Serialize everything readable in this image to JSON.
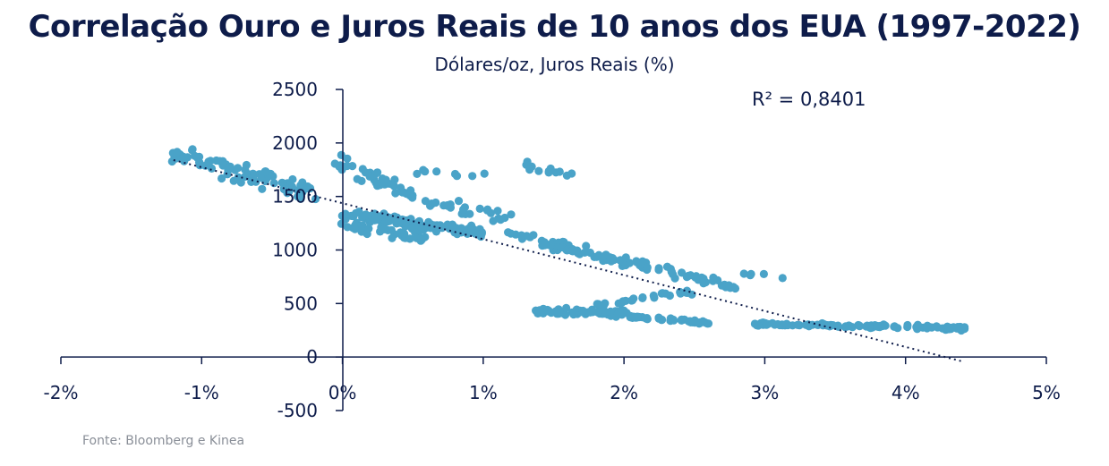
{
  "chart_data": {
    "type": "scatter",
    "title": "Correlação Ouro e Juros Reais de 10 anos dos EUA (1997-2022)",
    "subtitle": "Dólares/oz, Juros Reais (%)",
    "source": "Fonte: Bloomberg e Kinea",
    "annotation": "R² = 0,8401",
    "xlim": [
      -0.02,
      0.05
    ],
    "ylim": [
      -500,
      2500
    ],
    "x_ticks": [
      "-2%",
      "-1%",
      "0%",
      "1%",
      "2%",
      "3%",
      "4%",
      "5%"
    ],
    "y_ticks": [
      "2500",
      "2000",
      "1500",
      "1000",
      "500",
      "0",
      "-500"
    ],
    "x_tick_values": [
      -0.02,
      -0.01,
      0,
      0.01,
      0.02,
      0.03,
      0.04,
      0.05
    ],
    "y_tick_values": [
      2500,
      2000,
      1500,
      1000,
      500,
      0,
      -500
    ],
    "point_color": "#4aa3c8",
    "trendline": {
      "color": "#0e1c4a",
      "style": "dotted",
      "x": [
        -0.012,
        0.044
      ],
      "y": [
        1840,
        -40
      ]
    },
    "clusters": [
      {
        "x_from": -0.012,
        "x_to": -0.002,
        "y_from": 1900,
        "y_to": 1520,
        "n": 90,
        "spread": 110
      },
      {
        "x_from": -0.0002,
        "x_to": 0.006,
        "y_from": 1820,
        "y_to": 1450,
        "n": 40,
        "spread": 90
      },
      {
        "x_from": 0.006,
        "x_to": 0.012,
        "y_from": 1450,
        "y_to": 1300,
        "n": 25,
        "spread": 80
      },
      {
        "x_from": 0.0,
        "x_to": 0.01,
        "y_from": 1350,
        "y_to": 1150,
        "n": 120,
        "spread": 70
      },
      {
        "x_from": 0.0,
        "x_to": 0.006,
        "y_from": 1250,
        "y_to": 1100,
        "n": 35,
        "spread": 60
      },
      {
        "x_from": 0.012,
        "x_to": 0.02,
        "y_from": 1150,
        "y_to": 880,
        "n": 60,
        "spread": 70
      },
      {
        "x_from": 0.02,
        "x_to": 0.028,
        "y_from": 900,
        "y_to": 650,
        "n": 45,
        "spread": 60
      },
      {
        "x_from": 0.028,
        "x_to": 0.031,
        "y_from": 800,
        "y_to": 720,
        "n": 5,
        "spread": 40
      },
      {
        "x_from": 0.014,
        "x_to": 0.02,
        "y_from": 430,
        "y_to": 410,
        "n": 80,
        "spread": 40
      },
      {
        "x_from": 0.02,
        "x_to": 0.026,
        "y_from": 380,
        "y_to": 320,
        "n": 40,
        "spread": 25
      },
      {
        "x_from": 0.018,
        "x_to": 0.025,
        "y_from": 480,
        "y_to": 620,
        "n": 25,
        "spread": 50
      },
      {
        "x_from": 0.029,
        "x_to": 0.044,
        "y_from": 310,
        "y_to": 270,
        "n": 110,
        "spread": 25
      },
      {
        "x_from": 0.0125,
        "x_to": 0.017,
        "y_from": 1800,
        "y_to": 1680,
        "n": 12,
        "spread": 50
      },
      {
        "x_from": 0.005,
        "x_to": 0.011,
        "y_from": 1750,
        "y_to": 1680,
        "n": 8,
        "spread": 60
      }
    ]
  }
}
